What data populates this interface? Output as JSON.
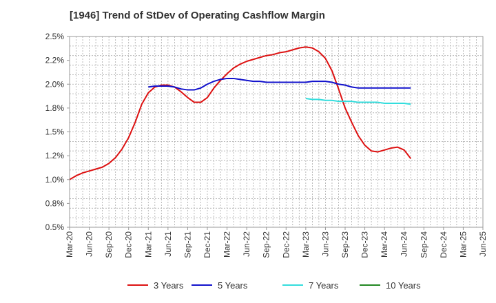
{
  "chart_data": {
    "type": "line",
    "title": "[1946]  Trend of StDev of Operating Cashflow Margin",
    "xlabel": "",
    "ylabel": "",
    "ylim": [
      0.5,
      2.5
    ],
    "y_ticks": [
      0.5,
      0.75,
      1.0,
      1.25,
      1.5,
      1.75,
      2.0,
      2.25,
      2.5
    ],
    "y_tick_labels": [
      "0.5%",
      "0.8%",
      "1.0%",
      "1.2%",
      "1.5%",
      "1.8%",
      "2.0%",
      "2.2%",
      "2.5%"
    ],
    "x_tick_labels": [
      "Mar-20",
      "Jun-20",
      "Sep-20",
      "Dec-20",
      "Mar-21",
      "Jun-21",
      "Sep-21",
      "Dec-21",
      "Mar-22",
      "Jun-22",
      "Sep-22",
      "Dec-22",
      "Mar-23",
      "Jun-23",
      "Sep-23",
      "Dec-23",
      "Mar-24",
      "Jun-24",
      "Sep-24",
      "Dec-24",
      "Mar-25",
      "Jun-25"
    ],
    "grid": true,
    "legend_position": "bottom",
    "series": [
      {
        "name": "3 Years",
        "color": "#dd1111",
        "start_index": 0,
        "values": [
          1.0,
          1.04,
          1.07,
          1.09,
          1.11,
          1.13,
          1.17,
          1.23,
          1.32,
          1.44,
          1.6,
          1.79,
          1.91,
          1.97,
          1.99,
          1.99,
          1.97,
          1.92,
          1.86,
          1.81,
          1.81,
          1.86,
          1.96,
          2.04,
          2.11,
          2.17,
          2.21,
          2.24,
          2.26,
          2.28,
          2.3,
          2.31,
          2.33,
          2.34,
          2.36,
          2.38,
          2.39,
          2.38,
          2.34,
          2.27,
          2.14,
          1.95,
          1.75,
          1.6,
          1.46,
          1.36,
          1.3,
          1.29,
          1.31,
          1.33,
          1.34,
          1.31,
          1.22
        ]
      },
      {
        "name": "5 Years",
        "color": "#1111cc",
        "start_index": 12,
        "values": [
          1.97,
          1.98,
          1.98,
          1.98,
          1.97,
          1.95,
          1.94,
          1.94,
          1.96,
          2.0,
          2.03,
          2.05,
          2.06,
          2.06,
          2.05,
          2.04,
          2.03,
          2.03,
          2.02,
          2.02,
          2.02,
          2.02,
          2.02,
          2.02,
          2.02,
          2.03,
          2.03,
          2.03,
          2.02,
          2.0,
          1.99,
          1.97,
          1.96,
          1.96,
          1.96,
          1.96,
          1.96,
          1.96,
          1.96,
          1.96,
          1.96
        ]
      },
      {
        "name": "7 Years",
        "color": "#33dddd",
        "start_index": 36,
        "values": [
          1.85,
          1.84,
          1.84,
          1.83,
          1.83,
          1.82,
          1.82,
          1.82,
          1.81,
          1.81,
          1.81,
          1.81,
          1.8,
          1.8,
          1.8,
          1.8,
          1.79
        ]
      },
      {
        "name": "10 Years",
        "color": "#228822",
        "start_index": 0,
        "values": []
      }
    ]
  }
}
